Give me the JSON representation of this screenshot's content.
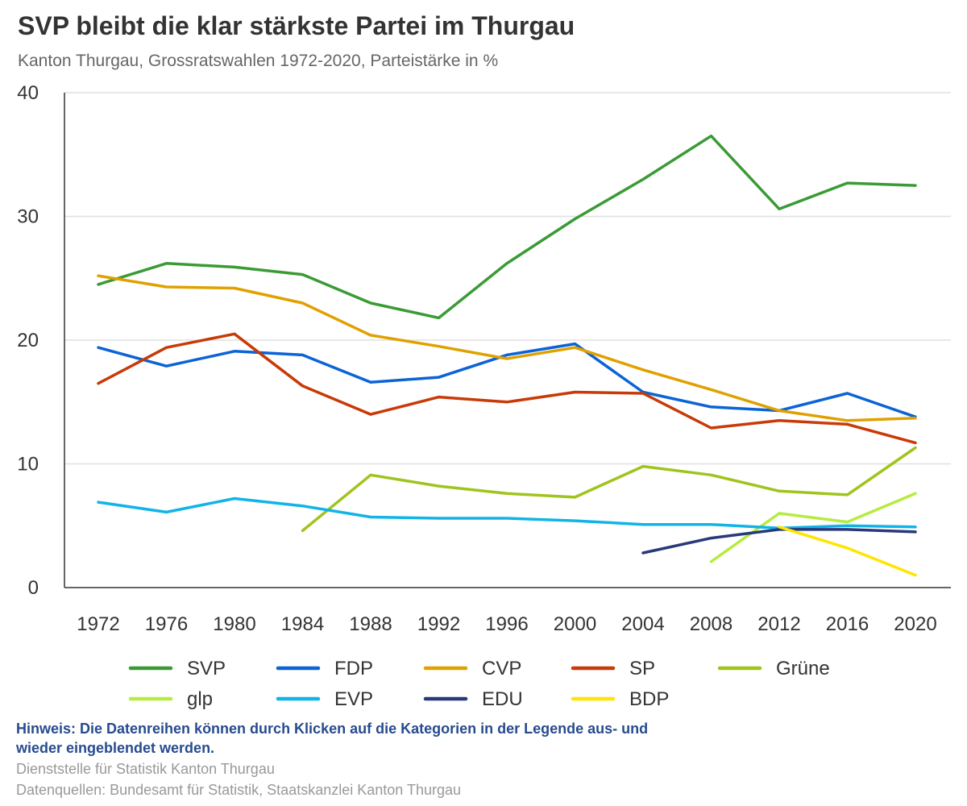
{
  "chart_data": {
    "type": "line",
    "title": "SVP bleibt die klar stärkste Partei im Thurgau",
    "subtitle": "Kanton Thurgau, Grossratswahlen 1972-2020, Parteistärke in %",
    "x": [
      "1972",
      "1976",
      "1980",
      "1984",
      "1988",
      "1992",
      "1996",
      "2000",
      "2004",
      "2008",
      "2012",
      "2016",
      "2020"
    ],
    "ylim": [
      0,
      40
    ],
    "yticks": [
      0,
      10,
      20,
      30,
      40
    ],
    "grid": true,
    "legend_position": "bottom",
    "series": [
      {
        "name": "SVP",
        "color": "#3a9b35",
        "values": [
          24.5,
          26.2,
          25.9,
          25.3,
          23.0,
          21.8,
          26.2,
          29.8,
          33.0,
          36.5,
          30.6,
          32.7,
          32.5
        ]
      },
      {
        "name": "FDP",
        "color": "#0b63d6",
        "values": [
          19.4,
          17.9,
          19.1,
          18.8,
          16.6,
          17.0,
          18.8,
          19.7,
          15.8,
          14.6,
          14.3,
          15.7,
          13.8
        ]
      },
      {
        "name": "CVP",
        "color": "#e0a100",
        "values": [
          25.2,
          24.3,
          24.2,
          23.0,
          20.4,
          19.5,
          18.5,
          19.4,
          17.6,
          16.0,
          14.3,
          13.5,
          13.7
        ]
      },
      {
        "name": "SP",
        "color": "#c83a07",
        "values": [
          16.5,
          19.4,
          20.5,
          16.3,
          14.0,
          15.4,
          15.0,
          15.8,
          15.7,
          12.9,
          13.5,
          13.2,
          11.7
        ]
      },
      {
        "name": "Grüne",
        "color": "#a0c41e",
        "values": [
          null,
          null,
          null,
          4.6,
          9.1,
          8.2,
          7.6,
          7.3,
          9.8,
          9.1,
          7.8,
          7.5,
          11.3
        ]
      },
      {
        "name": "glp",
        "color": "#b6ec3f",
        "values": [
          null,
          null,
          null,
          null,
          null,
          null,
          null,
          null,
          null,
          2.1,
          6.0,
          5.3,
          7.6
        ]
      },
      {
        "name": "EVP",
        "color": "#11b4e6",
        "values": [
          6.9,
          6.1,
          7.2,
          6.6,
          5.7,
          5.6,
          5.6,
          5.4,
          5.1,
          5.1,
          4.8,
          5.0,
          4.9
        ]
      },
      {
        "name": "EDU",
        "color": "#28397a",
        "values": [
          null,
          null,
          null,
          null,
          null,
          null,
          null,
          null,
          2.8,
          4.0,
          4.7,
          4.7,
          4.5
        ]
      },
      {
        "name": "BDP",
        "color": "#ffe500",
        "values": [
          null,
          null,
          null,
          null,
          null,
          null,
          null,
          null,
          null,
          null,
          4.9,
          3.2,
          1.0
        ]
      }
    ]
  },
  "footer": {
    "hint": "Hinweis: Die Datenreihen können durch Klicken auf die Kategorien in der Legende aus- und wieder eingeblendet werden.",
    "source1": "Dienststelle für Statistik Kanton Thurgau",
    "source2": "Datenquellen: Bundesamt für Statistik, Staatskanzlei Kanton Thurgau"
  }
}
